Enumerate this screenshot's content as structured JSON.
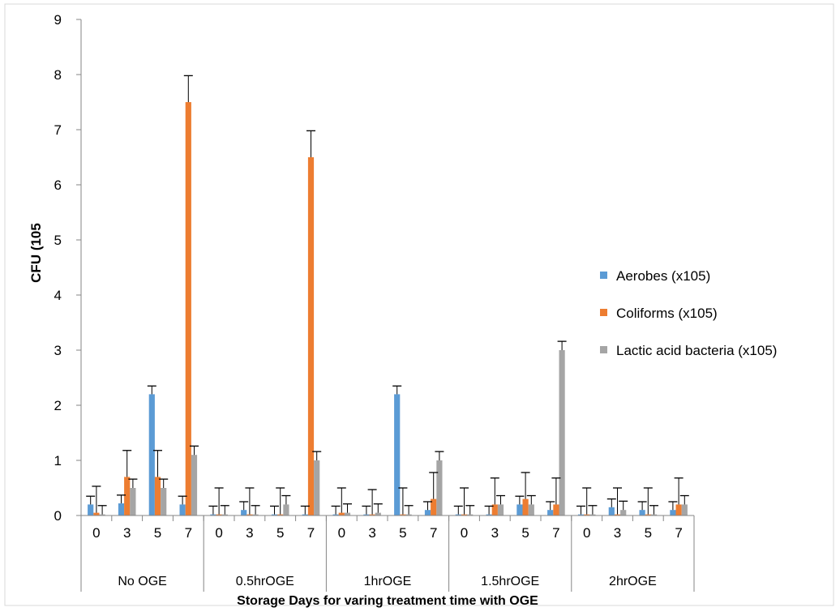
{
  "chart_data": {
    "type": "bar",
    "ylabel": "CFU (105",
    "xlabel": "Storage Days for varing treatment time with OGE",
    "ylim": [
      0,
      9
    ],
    "yticks": [
      0,
      1,
      2,
      3,
      4,
      5,
      6,
      7,
      8,
      9
    ],
    "grid": false,
    "legend_position": "right",
    "error_bars": true,
    "groups": [
      {
        "label": "No OGE",
        "days": [
          "0",
          "3",
          "5",
          "7"
        ]
      },
      {
        "label": "0.5hrOGE",
        "days": [
          "0",
          "3",
          "5",
          "7"
        ]
      },
      {
        "label": "1hrOGE",
        "days": [
          "0",
          "3",
          "5",
          "7"
        ]
      },
      {
        "label": "1.5hrOGE",
        "days": [
          "0",
          "3",
          "5",
          "7"
        ]
      },
      {
        "label": "2hrOGE",
        "days": [
          "0",
          "3",
          "5",
          "7"
        ]
      }
    ],
    "series": [
      {
        "name": "Aerobes (x105)",
        "color": "#5b9bd5",
        "values": [
          0.2,
          0.22,
          2.2,
          0.2,
          0.02,
          0.1,
          0.02,
          0.02,
          0.02,
          0.02,
          2.2,
          0.1,
          0.02,
          0.02,
          0.2,
          0.1,
          0.02,
          0.15,
          0.1,
          0.1
        ],
        "errors": [
          0.15,
          0.15,
          0.15,
          0.15,
          0.15,
          0.15,
          0.15,
          0.15,
          0.15,
          0.15,
          0.15,
          0.15,
          0.15,
          0.15,
          0.15,
          0.15,
          0.15,
          0.15,
          0.15,
          0.15
        ]
      },
      {
        "name": "Coliforms (x105)",
        "color": "#ed7d31",
        "values": [
          0.05,
          0.7,
          0.7,
          7.5,
          0.02,
          0.02,
          0.02,
          6.5,
          0.05,
          0.02,
          0.02,
          0.3,
          0.02,
          0.2,
          0.3,
          0.2,
          0.02,
          0.02,
          0.02,
          0.2
        ],
        "errors": [
          0.48,
          0.48,
          0.48,
          0.48,
          0.48,
          0.48,
          0.48,
          0.48,
          0.45,
          0.45,
          0.48,
          0.48,
          0.48,
          0.48,
          0.48,
          0.48,
          0.48,
          0.48,
          0.48,
          0.48
        ]
      },
      {
        "name": "Lactic acid bacteria (x105)",
        "color": "#a5a5a5",
        "values": [
          0.02,
          0.5,
          0.5,
          1.1,
          0.02,
          0.02,
          0.2,
          1.0,
          0.05,
          0.05,
          0.02,
          1.0,
          0.02,
          0.2,
          0.2,
          3.0,
          0.02,
          0.1,
          0.02,
          0.2
        ],
        "errors": [
          0.16,
          0.16,
          0.16,
          0.16,
          0.16,
          0.16,
          0.16,
          0.16,
          0.16,
          0.16,
          0.16,
          0.16,
          0.16,
          0.16,
          0.16,
          0.16,
          0.16,
          0.16,
          0.16,
          0.16
        ]
      }
    ]
  }
}
